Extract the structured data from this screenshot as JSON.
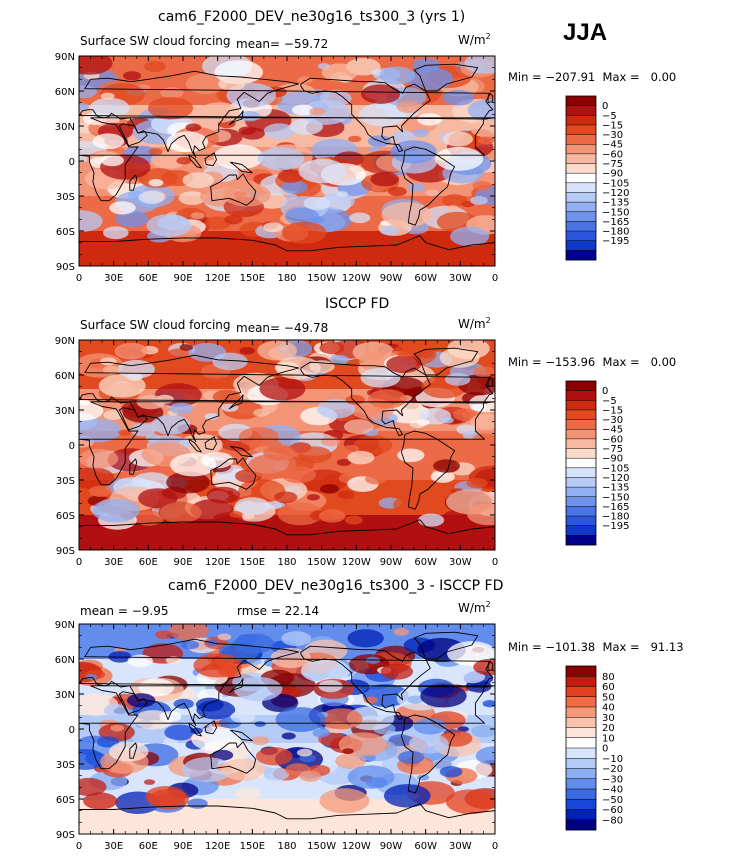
{
  "season": "JJA",
  "units": "W/m",
  "units_sup": "2",
  "min_label": "Min =",
  "max_label": "Max =",
  "lat_ticks": [
    "90N",
    "60N",
    "30N",
    "0",
    "30S",
    "60S",
    "90S"
  ],
  "lon_ticks": [
    "0",
    "30E",
    "60E",
    "90E",
    "120E",
    "150E",
    "180",
    "150W",
    "120W",
    "90W",
    "60W",
    "30W",
    "0"
  ],
  "palette_forcing": [
    "#8b0000",
    "#b01010",
    "#cf2a10",
    "#e1491f",
    "#ec6a45",
    "#f39477",
    "#f8b9a2",
    "#fbdccc",
    "#ffffff",
    "#d6e3fb",
    "#b7cbf7",
    "#93b0f2",
    "#6f93ec",
    "#4a73e3",
    "#2a55dc",
    "#0f38c9",
    "#00008b"
  ],
  "palette_diff": [
    "#8b0000",
    "#c31c0f",
    "#e34020",
    "#f06c44",
    "#f6987a",
    "#fac3ad",
    "#fde5da",
    "#ffffff",
    "#d8e5fc",
    "#b4caf7",
    "#8badf1",
    "#628ded",
    "#3a6be2",
    "#1748d8",
    "#0022b5",
    "#000080"
  ],
  "panels": [
    {
      "title": "cam6_F2000_DEV_ne30g16_ts300_3 (yrs 1)",
      "left_text": "Surface SW cloud forcing",
      "mean_text": "mean=  −59.72",
      "min": "−207.91",
      "max": "0.00",
      "colorbar_labels": [
        "0",
        "−5",
        "−15",
        "−30",
        "−45",
        "−60",
        "−75",
        "−90",
        "−105",
        "−120",
        "−135",
        "−150",
        "−165",
        "−180",
        "−195"
      ]
    },
    {
      "title": "ISCCP FD",
      "left_text": "Surface SW cloud forcing",
      "mean_text": "mean=  −49.78",
      "min": "−153.96",
      "max": "0.00",
      "colorbar_labels": [
        "0",
        "−5",
        "−15",
        "−30",
        "−45",
        "−60",
        "−75",
        "−90",
        "−105",
        "−120",
        "−135",
        "−150",
        "−165",
        "−180",
        "−195"
      ]
    },
    {
      "title": "cam6_F2000_DEV_ne30g16_ts300_3 - ISCCP FD",
      "left_text": "mean =    −9.95",
      "mean_text": "rmse =   22.14",
      "min": "−101.38",
      "max": "91.13",
      "colorbar_labels": [
        "80",
        "60",
        "50",
        "40",
        "30",
        "20",
        "10",
        "0",
        "−10",
        "−20",
        "−30",
        "−40",
        "−50",
        "−60",
        "−80"
      ]
    }
  ]
}
